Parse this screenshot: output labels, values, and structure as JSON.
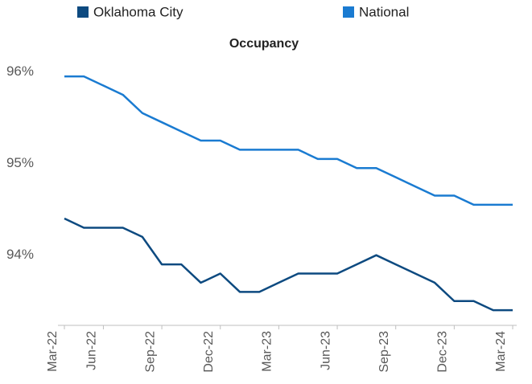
{
  "chart_data": {
    "type": "line",
    "title": "Occupancy",
    "categories": [
      "Mar-22",
      null,
      "Jun-22",
      null,
      null,
      "Sep-22",
      null,
      null,
      "Dec-22",
      null,
      null,
      "Mar-23",
      null,
      null,
      "Jun-23",
      null,
      null,
      "Sep-23",
      null,
      null,
      "Dec-23",
      null,
      null,
      "Mar-24"
    ],
    "series": [
      {
        "name": "Oklahoma City",
        "color": "#0d4a80",
        "values": [
          94.4,
          94.3,
          94.3,
          94.3,
          94.2,
          93.9,
          93.9,
          93.7,
          93.8,
          93.6,
          93.6,
          93.7,
          93.8,
          93.8,
          93.8,
          93.9,
          94.0,
          93.9,
          93.8,
          93.7,
          93.5,
          93.5,
          93.4,
          93.4
        ]
      },
      {
        "name": "National",
        "color": "#1a7bd1",
        "values": [
          95.95,
          95.95,
          95.85,
          95.75,
          95.55,
          95.45,
          95.35,
          95.25,
          95.25,
          95.15,
          95.15,
          95.15,
          95.15,
          95.05,
          95.05,
          94.95,
          94.95,
          94.85,
          94.75,
          94.65,
          94.65,
          94.55,
          94.55,
          94.55
        ]
      }
    ],
    "ylim": [
      93.2,
      96.1
    ],
    "yticks": [
      {
        "value": 94,
        "label": "94%"
      },
      {
        "value": 95,
        "label": "95%"
      },
      {
        "value": 96,
        "label": "96%"
      }
    ],
    "legend": "top",
    "grid": false
  }
}
